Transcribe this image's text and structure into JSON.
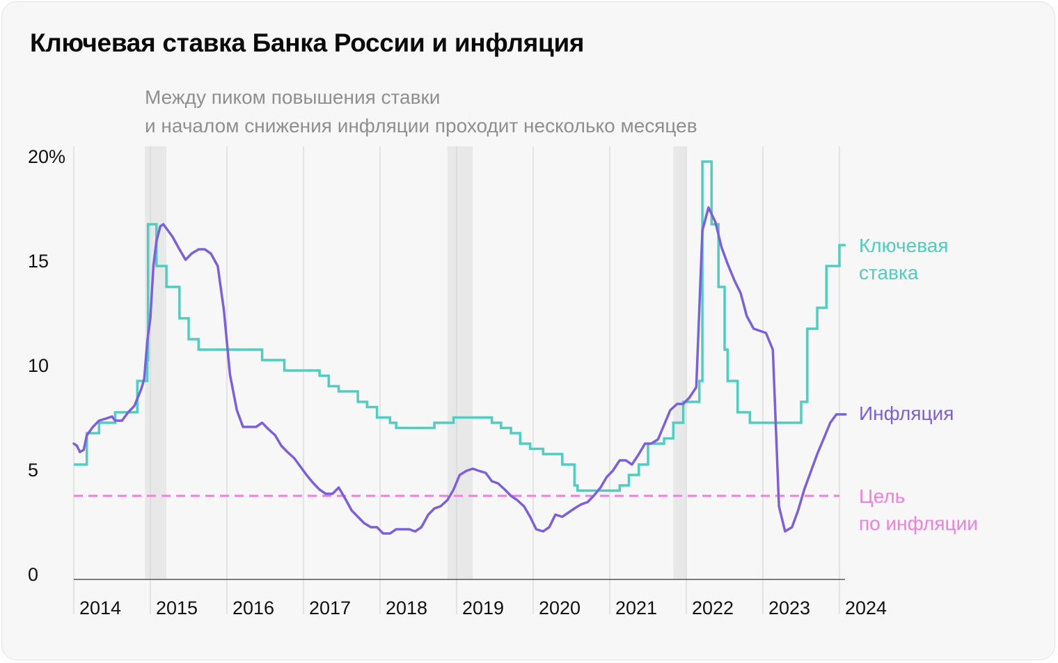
{
  "title": "Ключевая ставка Банка России и инфляция",
  "chart_data": {
    "type": "line",
    "title": "Ключевая ставка Банка России и инфляция",
    "annotation": [
      "Между пиком повышения ставки",
      "и началом снижения инфляции проходит несколько месяцев"
    ],
    "yticks": [
      "20%",
      "15",
      "10",
      "5",
      "0"
    ],
    "ylim": [
      0,
      20
    ],
    "xlim": [
      2014,
      2024
    ],
    "xticks": [
      "2014",
      "2015",
      "2016",
      "2017",
      "2018",
      "2019",
      "2020",
      "2021",
      "2022",
      "2023",
      "2024"
    ],
    "grid": "vertical",
    "highlight_periods": [
      [
        2014.93,
        2015.21
      ],
      [
        2018.88,
        2019.21
      ],
      [
        2021.83,
        2022.0
      ]
    ],
    "target": {
      "name": "Цель по инфляции",
      "label_lines": [
        "Цель",
        "по инфляции"
      ],
      "value": 4,
      "color": "#f27fdc"
    },
    "series": [
      {
        "name": "Ключевая ставка",
        "label_lines": [
          "Ключевая",
          "ставка"
        ],
        "step": true,
        "color": "#4ecdc0",
        "points": [
          [
            2014.0,
            5.5
          ],
          [
            2014.17,
            7.0
          ],
          [
            2014.33,
            7.5
          ],
          [
            2014.54,
            8.0
          ],
          [
            2014.83,
            9.5
          ],
          [
            2014.96,
            10.5
          ],
          [
            2014.97,
            17.0
          ],
          [
            2015.08,
            15.0
          ],
          [
            2015.21,
            14.0
          ],
          [
            2015.38,
            12.5
          ],
          [
            2015.5,
            11.5
          ],
          [
            2015.63,
            11.0
          ],
          [
            2016.46,
            10.5
          ],
          [
            2016.75,
            10.0
          ],
          [
            2017.21,
            9.75
          ],
          [
            2017.33,
            9.25
          ],
          [
            2017.46,
            9.0
          ],
          [
            2017.71,
            8.5
          ],
          [
            2017.83,
            8.25
          ],
          [
            2017.96,
            7.75
          ],
          [
            2018.13,
            7.5
          ],
          [
            2018.21,
            7.25
          ],
          [
            2018.71,
            7.5
          ],
          [
            2018.96,
            7.75
          ],
          [
            2019.46,
            7.5
          ],
          [
            2019.58,
            7.25
          ],
          [
            2019.71,
            7.0
          ],
          [
            2019.83,
            6.5
          ],
          [
            2019.96,
            6.25
          ],
          [
            2020.13,
            6.0
          ],
          [
            2020.38,
            5.5
          ],
          [
            2020.54,
            4.5
          ],
          [
            2020.58,
            4.25
          ],
          [
            2021.13,
            4.5
          ],
          [
            2021.25,
            5.0
          ],
          [
            2021.38,
            5.5
          ],
          [
            2021.5,
            6.5
          ],
          [
            2021.71,
            6.75
          ],
          [
            2021.83,
            7.5
          ],
          [
            2021.96,
            8.5
          ],
          [
            2022.17,
            9.5
          ],
          [
            2022.21,
            20.0
          ],
          [
            2022.33,
            17.0
          ],
          [
            2022.42,
            14.0
          ],
          [
            2022.5,
            11.0
          ],
          [
            2022.54,
            9.5
          ],
          [
            2022.67,
            8.0
          ],
          [
            2022.83,
            7.5
          ],
          [
            2023.5,
            8.5
          ],
          [
            2023.58,
            12.0
          ],
          [
            2023.71,
            13.0
          ],
          [
            2023.83,
            15.0
          ],
          [
            2024.0,
            16.0
          ],
          [
            2024.08,
            16.0
          ]
        ]
      },
      {
        "name": "Инфляция",
        "step": false,
        "color": "#7b5fe0",
        "points": [
          [
            2014.0,
            6.5
          ],
          [
            2014.04,
            6.4
          ],
          [
            2014.08,
            6.1
          ],
          [
            2014.13,
            6.2
          ],
          [
            2014.17,
            6.9
          ],
          [
            2014.25,
            7.3
          ],
          [
            2014.33,
            7.6
          ],
          [
            2014.42,
            7.7
          ],
          [
            2014.5,
            7.8
          ],
          [
            2014.54,
            7.6
          ],
          [
            2014.63,
            7.6
          ],
          [
            2014.71,
            8.0
          ],
          [
            2014.79,
            8.3
          ],
          [
            2014.88,
            9.1
          ],
          [
            2014.92,
            9.6
          ],
          [
            2014.96,
            11.4
          ],
          [
            2015.0,
            12.5
          ],
          [
            2015.04,
            15.0
          ],
          [
            2015.08,
            16.2
          ],
          [
            2015.13,
            16.9
          ],
          [
            2015.17,
            17.0
          ],
          [
            2015.21,
            16.8
          ],
          [
            2015.29,
            16.4
          ],
          [
            2015.38,
            15.8
          ],
          [
            2015.46,
            15.3
          ],
          [
            2015.54,
            15.6
          ],
          [
            2015.63,
            15.8
          ],
          [
            2015.71,
            15.8
          ],
          [
            2015.79,
            15.6
          ],
          [
            2015.88,
            15.0
          ],
          [
            2015.96,
            12.9
          ],
          [
            2016.04,
            9.8
          ],
          [
            2016.13,
            8.1
          ],
          [
            2016.21,
            7.3
          ],
          [
            2016.29,
            7.3
          ],
          [
            2016.38,
            7.3
          ],
          [
            2016.46,
            7.5
          ],
          [
            2016.54,
            7.2
          ],
          [
            2016.63,
            6.9
          ],
          [
            2016.71,
            6.4
          ],
          [
            2016.79,
            6.1
          ],
          [
            2016.88,
            5.8
          ],
          [
            2016.96,
            5.4
          ],
          [
            2017.04,
            5.0
          ],
          [
            2017.13,
            4.6
          ],
          [
            2017.21,
            4.3
          ],
          [
            2017.29,
            4.1
          ],
          [
            2017.38,
            4.1
          ],
          [
            2017.46,
            4.4
          ],
          [
            2017.54,
            3.9
          ],
          [
            2017.63,
            3.3
          ],
          [
            2017.71,
            3.0
          ],
          [
            2017.79,
            2.7
          ],
          [
            2017.88,
            2.5
          ],
          [
            2017.96,
            2.5
          ],
          [
            2018.04,
            2.2
          ],
          [
            2018.13,
            2.2
          ],
          [
            2018.21,
            2.4
          ],
          [
            2018.29,
            2.4
          ],
          [
            2018.38,
            2.4
          ],
          [
            2018.46,
            2.3
          ],
          [
            2018.54,
            2.5
          ],
          [
            2018.63,
            3.1
          ],
          [
            2018.71,
            3.4
          ],
          [
            2018.79,
            3.5
          ],
          [
            2018.88,
            3.8
          ],
          [
            2018.96,
            4.3
          ],
          [
            2019.04,
            5.0
          ],
          [
            2019.13,
            5.2
          ],
          [
            2019.21,
            5.3
          ],
          [
            2019.29,
            5.2
          ],
          [
            2019.38,
            5.1
          ],
          [
            2019.46,
            4.7
          ],
          [
            2019.54,
            4.6
          ],
          [
            2019.63,
            4.3
          ],
          [
            2019.71,
            4.0
          ],
          [
            2019.79,
            3.8
          ],
          [
            2019.88,
            3.5
          ],
          [
            2019.96,
            3.0
          ],
          [
            2020.04,
            2.4
          ],
          [
            2020.13,
            2.3
          ],
          [
            2020.21,
            2.5
          ],
          [
            2020.29,
            3.1
          ],
          [
            2020.38,
            3.0
          ],
          [
            2020.46,
            3.2
          ],
          [
            2020.54,
            3.4
          ],
          [
            2020.63,
            3.6
          ],
          [
            2020.71,
            3.7
          ],
          [
            2020.79,
            4.0
          ],
          [
            2020.88,
            4.4
          ],
          [
            2020.96,
            4.9
          ],
          [
            2021.04,
            5.2
          ],
          [
            2021.13,
            5.7
          ],
          [
            2021.21,
            5.7
          ],
          [
            2021.29,
            5.5
          ],
          [
            2021.38,
            6.0
          ],
          [
            2021.46,
            6.5
          ],
          [
            2021.54,
            6.5
          ],
          [
            2021.63,
            6.7
          ],
          [
            2021.71,
            7.4
          ],
          [
            2021.79,
            8.1
          ],
          [
            2021.88,
            8.4
          ],
          [
            2021.96,
            8.4
          ],
          [
            2022.04,
            8.7
          ],
          [
            2022.13,
            9.2
          ],
          [
            2022.21,
            16.7
          ],
          [
            2022.29,
            17.8
          ],
          [
            2022.38,
            17.1
          ],
          [
            2022.46,
            15.9
          ],
          [
            2022.54,
            15.1
          ],
          [
            2022.63,
            14.3
          ],
          [
            2022.71,
            13.7
          ],
          [
            2022.79,
            12.6
          ],
          [
            2022.88,
            12.0
          ],
          [
            2022.96,
            11.9
          ],
          [
            2023.04,
            11.8
          ],
          [
            2023.13,
            11.0
          ],
          [
            2023.21,
            3.5
          ],
          [
            2023.29,
            2.3
          ],
          [
            2023.38,
            2.5
          ],
          [
            2023.46,
            3.3
          ],
          [
            2023.54,
            4.3
          ],
          [
            2023.63,
            5.2
          ],
          [
            2023.71,
            6.0
          ],
          [
            2023.79,
            6.7
          ],
          [
            2023.88,
            7.5
          ],
          [
            2023.96,
            7.9
          ],
          [
            2024.04,
            7.9
          ],
          [
            2024.08,
            7.9
          ]
        ]
      }
    ]
  }
}
